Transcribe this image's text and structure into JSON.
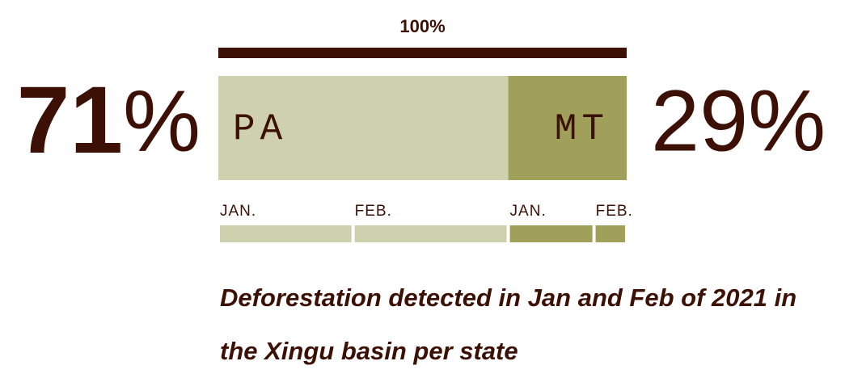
{
  "chart_data": {
    "type": "stacked_bar",
    "title": "Deforestation detected in Jan and Feb of 2021 in the Xingu basin per state",
    "total": {
      "value": 100,
      "label": "100%"
    },
    "xlim": [
      0,
      100
    ],
    "text_color": "#3d1005",
    "series": [
      {
        "name": "PA",
        "color": "#cfd1ae",
        "values": [
          71
        ],
        "value_labels": [
          "71%"
        ],
        "months": {
          "categories": [
            "JAN.",
            "FEB."
          ],
          "values": [
            33,
            38
          ]
        }
      },
      {
        "name": "MT",
        "color": "#a0a05a",
        "values": [
          29
        ],
        "value_labels": [
          "29%"
        ],
        "months": {
          "categories": [
            "JAN.",
            "FEB."
          ],
          "values": [
            21,
            8
          ]
        }
      }
    ]
  }
}
